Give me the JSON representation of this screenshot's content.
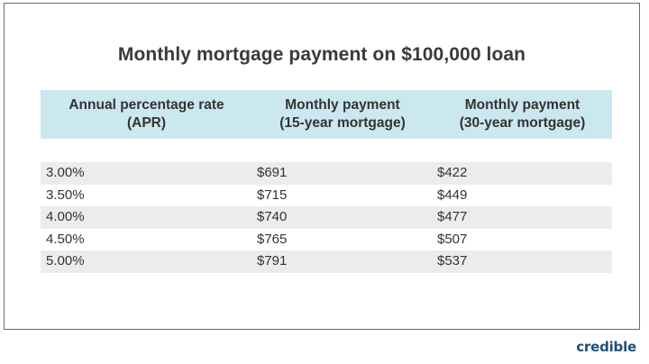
{
  "title": "Monthly mortgage payment on $100,000 loan",
  "table": {
    "headers": [
      {
        "line1": "Annual percentage rate",
        "line2": "(APR)"
      },
      {
        "line1": "Monthly payment",
        "line2": "(15-year mortgage)"
      },
      {
        "line1": "Monthly payment",
        "line2": "(30-year mortgage)"
      }
    ],
    "rows": [
      {
        "apr": "3.00%",
        "payment15": "$691",
        "payment30": "$422"
      },
      {
        "apr": "3.50%",
        "payment15": "$715",
        "payment30": "$449"
      },
      {
        "apr": "4.00%",
        "payment15": "$740",
        "payment30": "$477"
      },
      {
        "apr": "4.50%",
        "payment15": "$765",
        "payment30": "$507"
      },
      {
        "apr": "5.00%",
        "payment15": "$791",
        "payment30": "$537"
      }
    ]
  },
  "logo": "credible",
  "colors": {
    "header_background": "#cbe7ef",
    "row_shade": "#ececec",
    "logo": "#1f4e79"
  }
}
